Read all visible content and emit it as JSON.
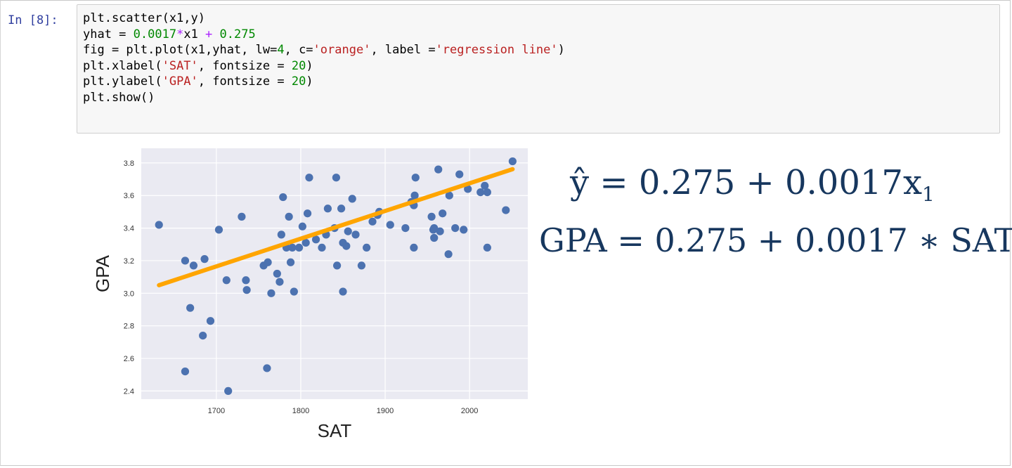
{
  "cell": {
    "prompt": "In [8]:",
    "code": [
      [
        {
          "t": "plain",
          "v": "plt.scatter(x1,y)"
        }
      ],
      [
        {
          "t": "plain",
          "v": "yhat = "
        },
        {
          "t": "num",
          "v": "0.0017"
        },
        {
          "t": "op",
          "v": "*"
        },
        {
          "t": "plain",
          "v": "x1 "
        },
        {
          "t": "op",
          "v": "+"
        },
        {
          "t": "plain",
          "v": " "
        },
        {
          "t": "num",
          "v": "0.275"
        }
      ],
      [
        {
          "t": "plain",
          "v": "fig = plt.plot(x1,yhat, lw="
        },
        {
          "t": "num",
          "v": "4"
        },
        {
          "t": "plain",
          "v": ", c="
        },
        {
          "t": "str",
          "v": "'orange'"
        },
        {
          "t": "plain",
          "v": ", label ="
        },
        {
          "t": "str",
          "v": "'regression line'"
        },
        {
          "t": "plain",
          "v": ")"
        }
      ],
      [
        {
          "t": "plain",
          "v": "plt.xlabel("
        },
        {
          "t": "str",
          "v": "'SAT'"
        },
        {
          "t": "plain",
          "v": ", fontsize = "
        },
        {
          "t": "num",
          "v": "20"
        },
        {
          "t": "plain",
          "v": ")"
        }
      ],
      [
        {
          "t": "plain",
          "v": "plt.ylabel("
        },
        {
          "t": "str",
          "v": "'GPA'"
        },
        {
          "t": "plain",
          "v": ", fontsize = "
        },
        {
          "t": "num",
          "v": "20"
        },
        {
          "t": "plain",
          "v": ")"
        }
      ],
      [
        {
          "t": "plain",
          "v": "plt.show()"
        }
      ]
    ]
  },
  "equations": {
    "line1_main": "ŷ = 0.275 + 0.0017x",
    "line1_sub": "1",
    "line2": "GPA = 0.275 + 0.0017 ∗ SAT"
  },
  "colors": {
    "points": "#4c72b0",
    "line": "#ffa500",
    "plot_bg": "#eaeaf2",
    "equation": "#17375e"
  },
  "chart_data": {
    "type": "scatter",
    "xlabel": "SAT",
    "ylabel": "GPA",
    "xlim": [
      1611,
      2069
    ],
    "ylim": [
      2.35,
      3.89
    ],
    "xticks": [
      1700,
      1800,
      1900,
      2000
    ],
    "yticks": [
      2.4,
      2.6,
      2.8,
      3.0,
      3.2,
      3.4,
      3.6,
      3.8
    ],
    "grid": true,
    "points": [
      [
        1632,
        3.42
      ],
      [
        1663,
        3.2
      ],
      [
        1669,
        2.91
      ],
      [
        1673,
        3.17
      ],
      [
        1684,
        2.74
      ],
      [
        1686,
        3.21
      ],
      [
        1693,
        2.83
      ],
      [
        1703,
        3.39
      ],
      [
        1712,
        3.08
      ],
      [
        1714,
        2.4
      ],
      [
        1730,
        3.47
      ],
      [
        1735,
        3.08
      ],
      [
        1736,
        3.02
      ],
      [
        1756,
        3.17
      ],
      [
        1761,
        3.19
      ],
      [
        1765,
        3.0
      ],
      [
        1772,
        3.12
      ],
      [
        1775,
        3.07
      ],
      [
        1777,
        3.36
      ],
      [
        1779,
        3.59
      ],
      [
        1783,
        3.28
      ],
      [
        1786,
        3.47
      ],
      [
        1788,
        3.19
      ],
      [
        1790,
        3.28
      ],
      [
        1792,
        3.01
      ],
      [
        1798,
        3.28
      ],
      [
        1802,
        3.41
      ],
      [
        1806,
        3.31
      ],
      [
        1808,
        3.49
      ],
      [
        1810,
        3.71
      ],
      [
        1818,
        3.33
      ],
      [
        1825,
        3.28
      ],
      [
        1830,
        3.36
      ],
      [
        1832,
        3.52
      ],
      [
        1840,
        3.4
      ],
      [
        1842,
        3.71
      ],
      [
        1843,
        3.17
      ],
      [
        1848,
        3.52
      ],
      [
        1850,
        3.01
      ],
      [
        1850,
        3.31
      ],
      [
        1854,
        3.29
      ],
      [
        1856,
        3.38
      ],
      [
        1861,
        3.58
      ],
      [
        1865,
        3.36
      ],
      [
        1872,
        3.17
      ],
      [
        1878,
        3.28
      ],
      [
        1885,
        3.44
      ],
      [
        1891,
        3.48
      ],
      [
        1893,
        3.5
      ],
      [
        1906,
        3.42
      ],
      [
        1924,
        3.4
      ],
      [
        1931,
        3.56
      ],
      [
        1934,
        3.28
      ],
      [
        1935,
        3.6
      ],
      [
        1936,
        3.71
      ],
      [
        1955,
        3.47
      ],
      [
        1957,
        3.39
      ],
      [
        1958,
        3.34
      ],
      [
        1963,
        3.76
      ],
      [
        1965,
        3.38
      ],
      [
        1968,
        3.49
      ],
      [
        1975,
        3.24
      ],
      [
        1976,
        3.6
      ],
      [
        1983,
        3.4
      ],
      [
        1988,
        3.73
      ],
      [
        1993,
        3.39
      ],
      [
        1998,
        3.64
      ],
      [
        2013,
        3.62
      ],
      [
        2018,
        3.66
      ],
      [
        2021,
        3.28
      ],
      [
        2021,
        3.62
      ],
      [
        2043,
        3.51
      ],
      [
        2051,
        3.81
      ],
      [
        1663,
        2.52
      ],
      [
        1760,
        2.54
      ],
      [
        1934,
        3.54
      ],
      [
        1958,
        3.4
      ]
    ],
    "line": {
      "name": "regression line",
      "intercept": 0.275,
      "slope": 0.0017,
      "x_range": [
        1632,
        2051
      ]
    }
  }
}
